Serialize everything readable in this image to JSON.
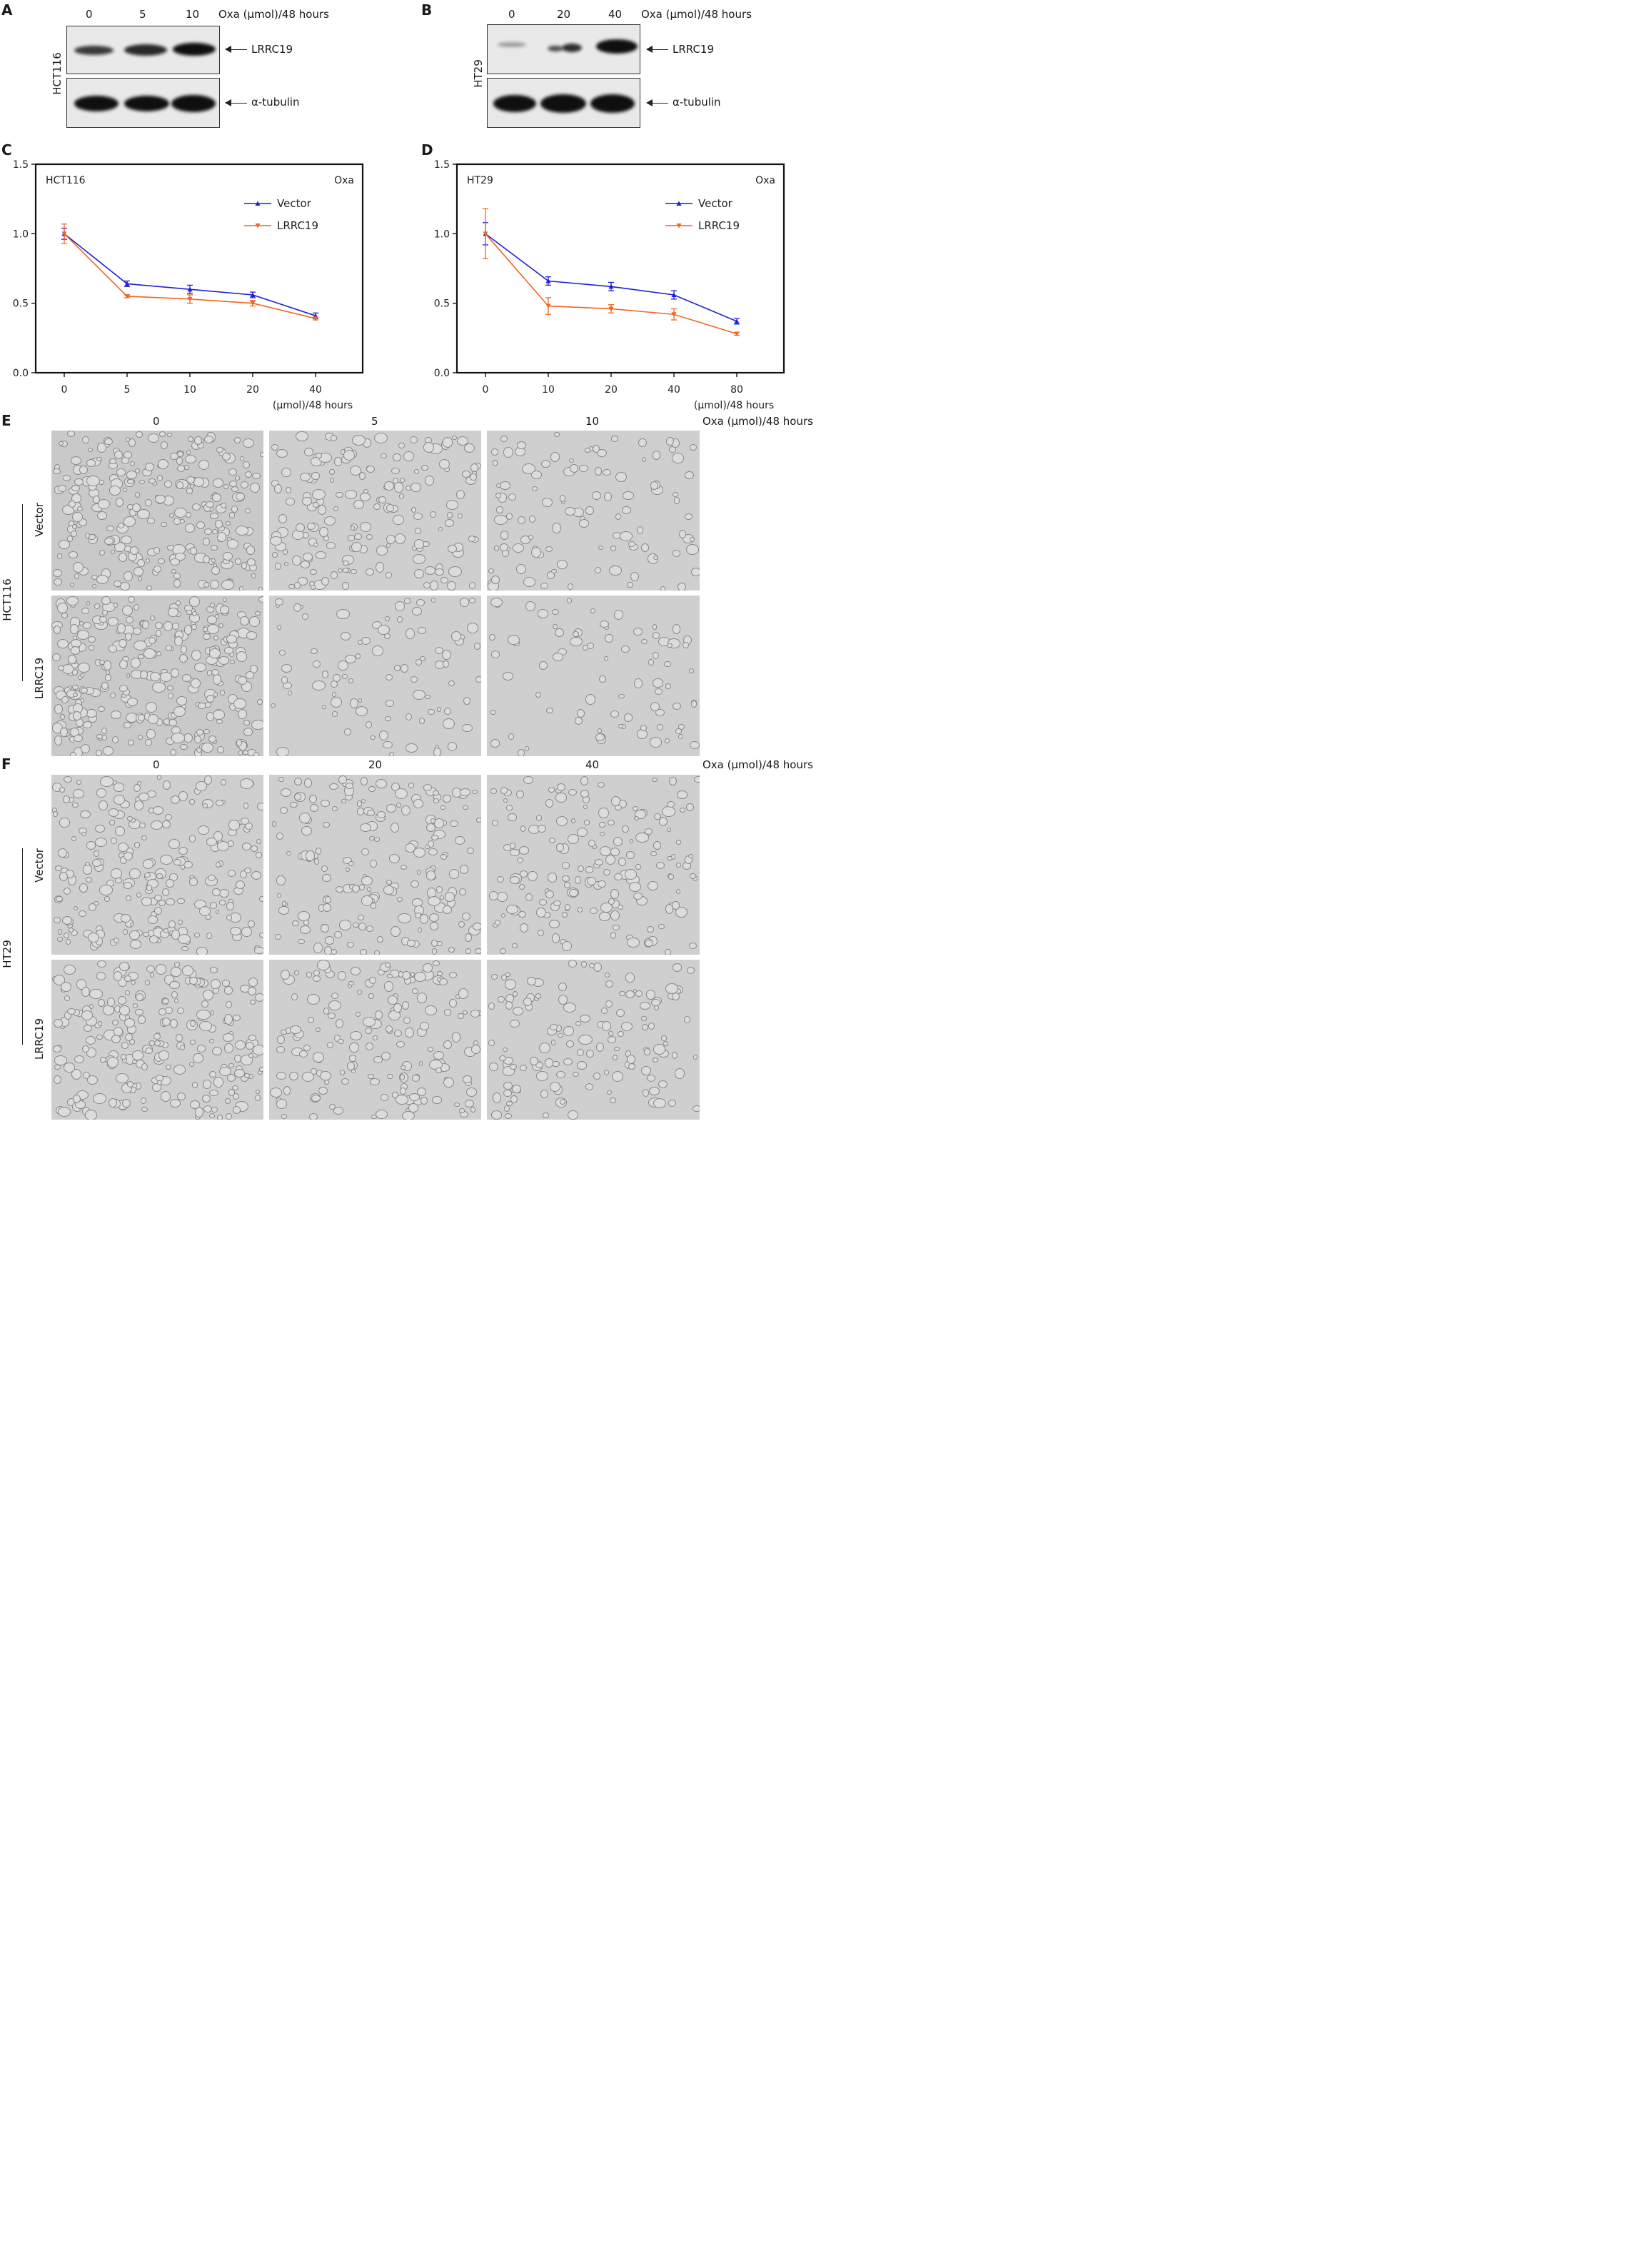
{
  "panels": {
    "A": {
      "letter": "A",
      "cell_line": "HCT116",
      "doses": [
        "0",
        "5",
        "10"
      ],
      "dose_unit": "Oxa (μmol)/48 hours",
      "band_labels": [
        "LRRC19",
        "α-tubulin"
      ]
    },
    "B": {
      "letter": "B",
      "cell_line": "HT29",
      "doses": [
        "0",
        "20",
        "40"
      ],
      "dose_unit": "Oxa (μmol)/48 hours",
      "band_labels": [
        "LRRC19",
        "α-tubulin"
      ]
    },
    "C": {
      "letter": "C",
      "cell_line": "HCT116",
      "drug": "Oxa"
    },
    "D": {
      "letter": "D",
      "cell_line": "HT29",
      "drug": "Oxa"
    },
    "E": {
      "letter": "E",
      "cell_line": "HCT116",
      "doses": [
        "0",
        "5",
        "10"
      ],
      "dose_unit": "Oxa (μmol)/48 hours",
      "rows": [
        "Vector",
        "LRRC19"
      ]
    },
    "F": {
      "letter": "F",
      "cell_line": "HT29",
      "doses": [
        "0",
        "20",
        "40"
      ],
      "dose_unit": "Oxa (μmol)/48 hours",
      "rows": [
        "Vector",
        "LRRC19"
      ]
    }
  },
  "chart_data": [
    {
      "type": "line",
      "panel": "C",
      "title": "HCT116",
      "annotation": "Oxa",
      "categories": [
        "0",
        "5",
        "10",
        "20",
        "40"
      ],
      "xlabel": "(μmol)/48 hours",
      "ylabel": "",
      "ylim": [
        0,
        1.5
      ],
      "yticks": [
        "0.0",
        "0.5",
        "1.0",
        "1.5"
      ],
      "legend_position": "top-right",
      "series": [
        {
          "name": "Vector",
          "color": "#1f1fd6",
          "marker": "triangle-up",
          "values": [
            1.0,
            0.64,
            0.6,
            0.56,
            0.41
          ],
          "errors": [
            0.04,
            0.02,
            0.03,
            0.02,
            0.02
          ]
        },
        {
          "name": "LRRC19",
          "color": "#f26522",
          "marker": "triangle-down",
          "values": [
            1.0,
            0.55,
            0.53,
            0.5,
            0.39
          ],
          "errors": [
            0.07,
            0.01,
            0.03,
            0.02,
            0.01
          ]
        }
      ]
    },
    {
      "type": "line",
      "panel": "D",
      "title": "HT29",
      "annotation": "Oxa",
      "categories": [
        "0",
        "10",
        "20",
        "40",
        "80"
      ],
      "xlabel": "(μmol)/48 hours",
      "ylabel": "",
      "ylim": [
        0,
        1.5
      ],
      "yticks": [
        "0.0",
        "0.5",
        "1.0",
        "1.5"
      ],
      "legend_position": "top-right",
      "series": [
        {
          "name": "Vector",
          "color": "#1f1fd6",
          "marker": "triangle-up",
          "values": [
            1.0,
            0.66,
            0.62,
            0.56,
            0.37
          ],
          "errors": [
            0.08,
            0.03,
            0.03,
            0.03,
            0.02
          ]
        },
        {
          "name": "LRRC19",
          "color": "#f26522",
          "marker": "triangle-down",
          "values": [
            1.0,
            0.48,
            0.46,
            0.42,
            0.28
          ],
          "errors": [
            0.18,
            0.06,
            0.03,
            0.04,
            0.01
          ]
        }
      ]
    }
  ]
}
